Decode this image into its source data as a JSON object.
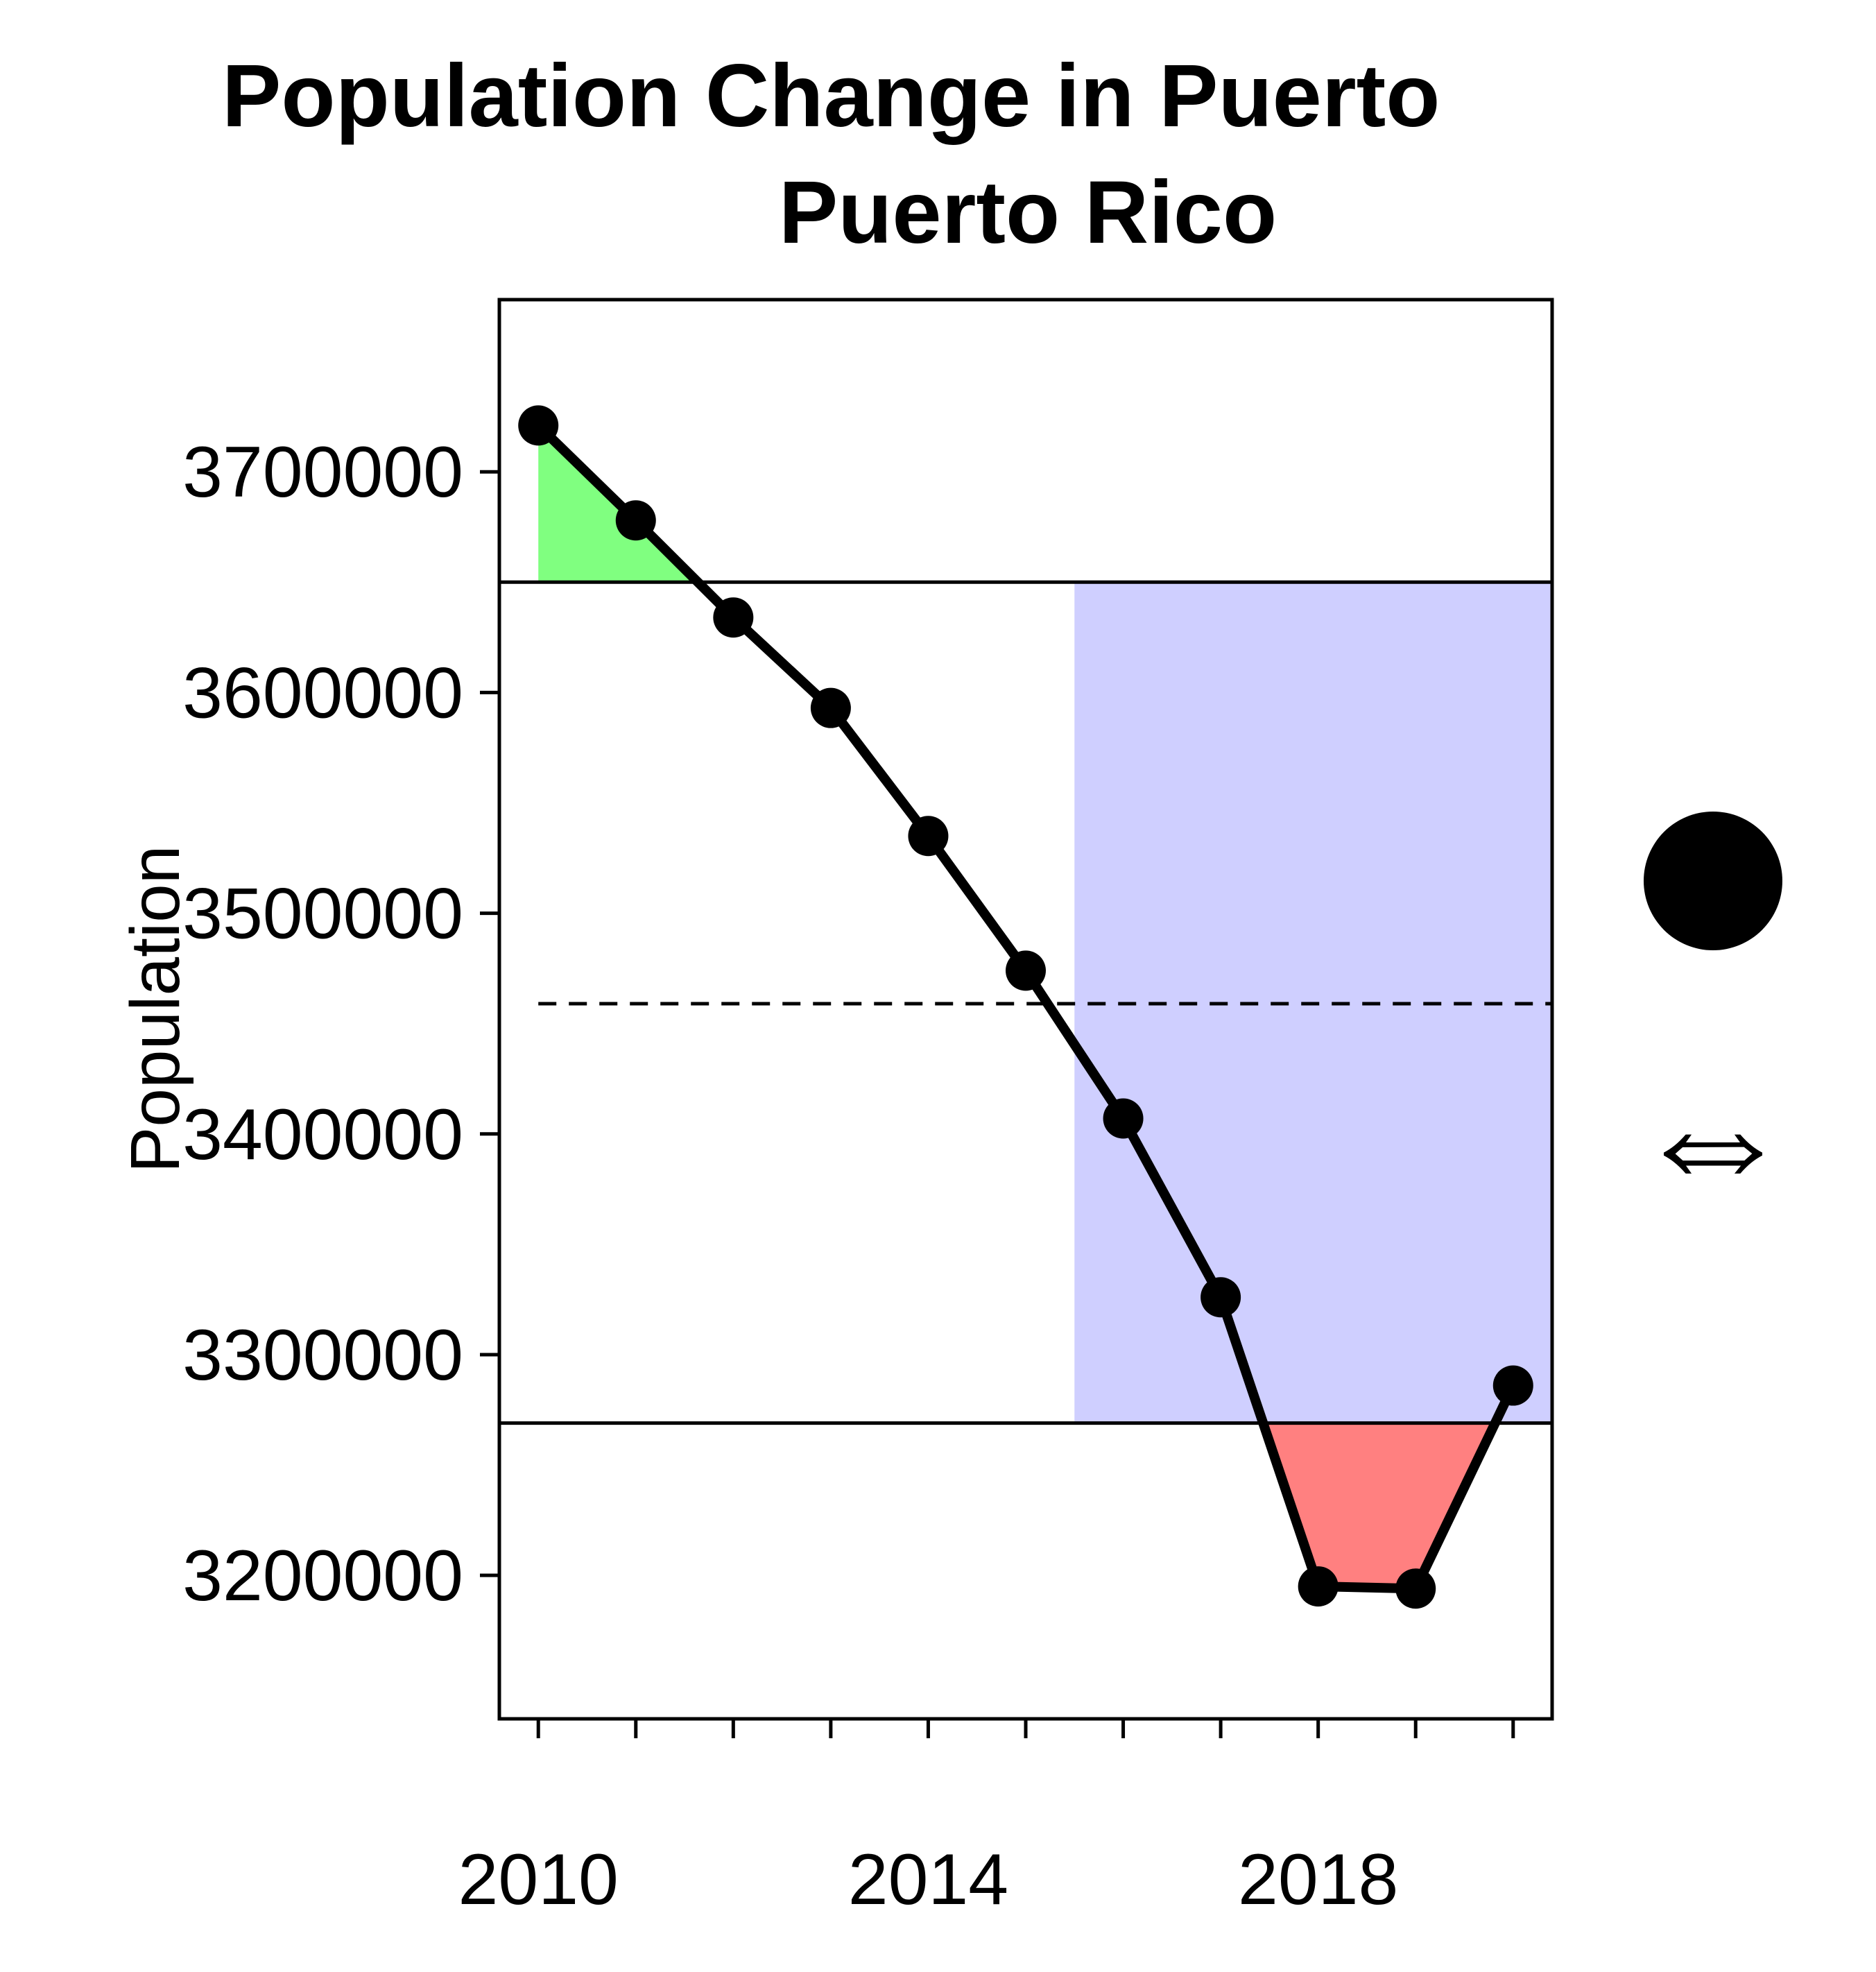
{
  "chart_data": {
    "type": "line",
    "title_line1": "Population Change in Puerto",
    "title_line2": "Puerto Rico",
    "ylabel": "Population",
    "xlabel": "",
    "x": [
      2010,
      2011,
      2012,
      2013,
      2014,
      2015,
      2016,
      2017,
      2018,
      2019,
      2020
    ],
    "series": [
      {
        "values": [
          3721000,
          3678000,
          3634000,
          3593000,
          3535000,
          3474000,
          3407000,
          3326000,
          3195000,
          3194000,
          3286000
        ],
        "color": "#000000"
      }
    ],
    "x_ticks": [
      2010,
      2014,
      2018
    ],
    "y_ticks": [
      3200000,
      3300000,
      3400000,
      3500000,
      3600000,
      3700000
    ],
    "xlim": [
      2009.6,
      2020.4
    ],
    "ylim": [
      3135000,
      3778000
    ],
    "reference_lines": {
      "upper": 3650000,
      "lower": 3269000,
      "mean_dashed": 3459000
    },
    "highlight_region": {
      "x_start": 2015.5,
      "x_end": 2020.4,
      "color": "#cfcfff"
    },
    "fill_above_color": "#80ff80",
    "fill_below_color": "#ff8080",
    "grid": false,
    "legend": {
      "placement": "right",
      "items": [
        {
          "symbol": "●",
          "icon": "filled-circle-icon"
        },
        {
          "symbol": "⇔",
          "icon": "double-arrow-icon"
        }
      ]
    }
  }
}
